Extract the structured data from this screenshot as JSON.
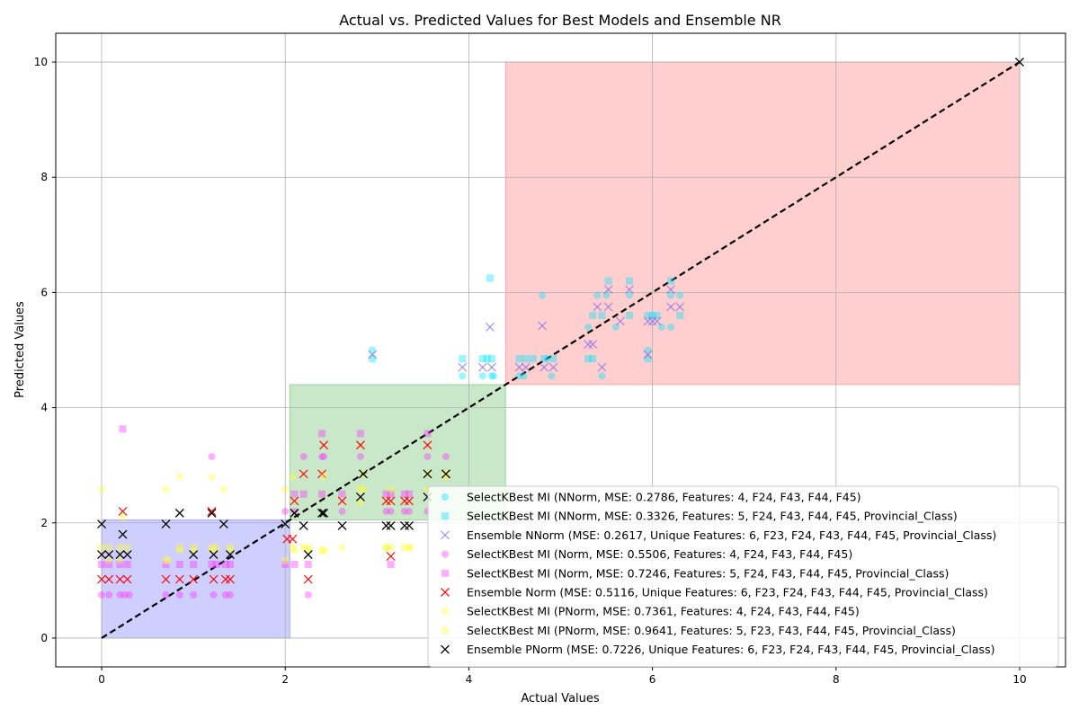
{
  "chart_data": {
    "type": "scatter",
    "title": "Actual vs. Predicted Values for Best Models and Ensemble NR",
    "xlabel": "Actual Values",
    "ylabel": "Predicted Values",
    "xlim": [
      -0.5,
      10.5
    ],
    "ylim": [
      -0.5,
      10.5
    ],
    "xticks": [
      0,
      2,
      4,
      6,
      8,
      10
    ],
    "yticks": [
      0,
      2,
      4,
      6,
      8,
      10
    ],
    "grid": true,
    "legend_position": "lower-right",
    "regions": [
      {
        "x": [
          0,
          2.05
        ],
        "y": [
          0,
          2.05
        ],
        "color": "#6a6aff"
      },
      {
        "x": [
          2.05,
          4.4
        ],
        "y": [
          2.05,
          4.4
        ],
        "color": "#5cb85c"
      },
      {
        "x": [
          4.4,
          10
        ],
        "y": [
          4.4,
          10
        ],
        "color": "#ff6b6b"
      }
    ],
    "diagonal": {
      "x": [
        0,
        10
      ],
      "y": [
        0,
        10
      ]
    },
    "series": [
      {
        "name": "SelectKBest MI (NNorm, MSE: 0.2786, Features: 4, F24, F43, F44, F45)",
        "marker": "circle",
        "color": "#00e5ff",
        "points": [
          [
            2.95,
            5.0
          ],
          [
            3.93,
            4.55
          ],
          [
            4.15,
            4.55
          ],
          [
            4.25,
            4.55
          ],
          [
            4.27,
            4.55
          ],
          [
            4.55,
            4.55
          ],
          [
            4.6,
            4.55
          ],
          [
            4.8,
            5.95
          ],
          [
            4.85,
            4.85
          ],
          [
            4.9,
            4.55
          ],
          [
            5.3,
            5.4
          ],
          [
            5.4,
            5.95
          ],
          [
            5.5,
            5.95
          ],
          [
            5.6,
            5.4
          ],
          [
            5.75,
            5.95
          ],
          [
            5.95,
            5.0
          ],
          [
            6.1,
            5.4
          ],
          [
            6.2,
            5.95
          ],
          [
            6.3,
            5.95
          ],
          [
            6.2,
            5.4
          ],
          [
            5.45,
            4.55
          ]
        ]
      },
      {
        "name": "SelectKBest MI (NNorm, MSE: 0.3326, Features: 5, F24, F43, F44, F45, Provincial_Class)",
        "marker": "square",
        "color": "#00e5ff",
        "points": [
          [
            2.95,
            4.85
          ],
          [
            3.93,
            4.85
          ],
          [
            4.15,
            4.85
          ],
          [
            4.2,
            4.85
          ],
          [
            4.25,
            4.85
          ],
          [
            4.23,
            6.25
          ],
          [
            4.55,
            4.85
          ],
          [
            4.62,
            4.85
          ],
          [
            4.7,
            4.85
          ],
          [
            4.82,
            4.85
          ],
          [
            4.92,
            4.85
          ],
          [
            5.3,
            4.85
          ],
          [
            5.35,
            4.85
          ],
          [
            5.35,
            5.6
          ],
          [
            5.45,
            5.6
          ],
          [
            5.52,
            6.2
          ],
          [
            5.75,
            6.2
          ],
          [
            5.75,
            5.6
          ],
          [
            5.95,
            5.6
          ],
          [
            6.0,
            5.6
          ],
          [
            6.05,
            5.6
          ],
          [
            6.2,
            6.2
          ],
          [
            6.3,
            5.6
          ],
          [
            5.95,
            4.85
          ]
        ]
      },
      {
        "name": "Ensemble NNorm (MSE: 0.2617, Unique Features: 6, F23, F24, F43, F44, F45, Provincial_Class)",
        "marker": "x",
        "color": "#7b68ee",
        "points": [
          [
            2.95,
            4.92
          ],
          [
            3.93,
            4.7
          ],
          [
            4.15,
            4.7
          ],
          [
            4.25,
            4.7
          ],
          [
            4.23,
            5.4
          ],
          [
            4.55,
            4.7
          ],
          [
            4.62,
            4.7
          ],
          [
            4.8,
            5.42
          ],
          [
            4.82,
            4.7
          ],
          [
            4.92,
            4.7
          ],
          [
            5.3,
            5.1
          ],
          [
            5.35,
            5.1
          ],
          [
            5.4,
            5.75
          ],
          [
            5.45,
            4.7
          ],
          [
            5.52,
            5.75
          ],
          [
            5.52,
            6.05
          ],
          [
            5.65,
            5.5
          ],
          [
            5.75,
            6.05
          ],
          [
            5.95,
            5.5
          ],
          [
            5.95,
            4.92
          ],
          [
            6.0,
            5.5
          ],
          [
            6.05,
            5.5
          ],
          [
            6.2,
            6.05
          ],
          [
            6.2,
            5.75
          ],
          [
            6.3,
            5.75
          ],
          [
            10,
            10
          ]
        ]
      },
      {
        "name": "SelectKBest MI (Norm, MSE: 0.5506, Features: 4, F24, F43, F44, F45)",
        "marker": "circle",
        "color": "#ff33ff",
        "points": [
          [
            0.0,
            0.75
          ],
          [
            0.08,
            0.75
          ],
          [
            0.2,
            0.75
          ],
          [
            0.25,
            0.75
          ],
          [
            0.3,
            0.75
          ],
          [
            0.7,
            0.75
          ],
          [
            0.85,
            0.75
          ],
          [
            1.0,
            0.75
          ],
          [
            1.2,
            3.15
          ],
          [
            1.22,
            0.75
          ],
          [
            1.35,
            0.75
          ],
          [
            1.4,
            0.75
          ],
          [
            2.0,
            2.2
          ],
          [
            2.1,
            2.2
          ],
          [
            2.2,
            3.15
          ],
          [
            2.25,
            0.75
          ],
          [
            2.4,
            3.15
          ],
          [
            2.42,
            3.15
          ],
          [
            2.62,
            2.2
          ],
          [
            2.82,
            3.15
          ],
          [
            3.1,
            2.2
          ],
          [
            3.15,
            2.2
          ],
          [
            3.3,
            2.2
          ],
          [
            3.35,
            2.2
          ],
          [
            3.55,
            3.15
          ],
          [
            3.55,
            2.2
          ],
          [
            3.75,
            3.15
          ]
        ]
      },
      {
        "name": "SelectKBest MI (Norm, MSE: 0.7246, Features: 5, F24, F43, F44, F45, Provincial_Class)",
        "marker": "square",
        "color": "#ff33ff",
        "points": [
          [
            0.0,
            1.28
          ],
          [
            0.08,
            1.28
          ],
          [
            0.2,
            1.28
          ],
          [
            0.23,
            3.63
          ],
          [
            0.28,
            1.28
          ],
          [
            0.7,
            1.28
          ],
          [
            0.85,
            1.28
          ],
          [
            1.0,
            1.28
          ],
          [
            1.2,
            1.28
          ],
          [
            1.25,
            1.28
          ],
          [
            1.35,
            1.28
          ],
          [
            1.4,
            1.28
          ],
          [
            2.0,
            1.28
          ],
          [
            2.1,
            1.28
          ],
          [
            2.1,
            2.5
          ],
          [
            2.2,
            2.5
          ],
          [
            2.25,
            1.28
          ],
          [
            2.4,
            2.5
          ],
          [
            2.4,
            3.55
          ],
          [
            2.62,
            2.5
          ],
          [
            2.82,
            3.55
          ],
          [
            3.1,
            2.5
          ],
          [
            3.15,
            1.28
          ],
          [
            3.15,
            2.5
          ],
          [
            3.3,
            2.5
          ],
          [
            3.35,
            2.5
          ],
          [
            3.55,
            3.55
          ]
        ]
      },
      {
        "name": "Ensemble Norm (MSE: 0.5116, Unique Features: 6, F23, F24, F43, F44, F45, Provincial_Class)",
        "marker": "x",
        "color": "#ff0000",
        "points": [
          [
            0.0,
            1.02
          ],
          [
            0.08,
            1.02
          ],
          [
            0.2,
            1.02
          ],
          [
            0.23,
            2.2
          ],
          [
            0.28,
            1.02
          ],
          [
            0.7,
            1.02
          ],
          [
            0.85,
            1.02
          ],
          [
            1.0,
            1.02
          ],
          [
            1.2,
            2.2
          ],
          [
            1.22,
            1.02
          ],
          [
            1.35,
            1.02
          ],
          [
            1.4,
            1.02
          ],
          [
            2.02,
            1.72
          ],
          [
            2.08,
            1.72
          ],
          [
            2.1,
            2.38
          ],
          [
            2.2,
            2.85
          ],
          [
            2.25,
            1.02
          ],
          [
            2.4,
            2.85
          ],
          [
            2.42,
            3.35
          ],
          [
            2.62,
            2.38
          ],
          [
            2.82,
            3.35
          ],
          [
            3.1,
            2.38
          ],
          [
            3.15,
            1.42
          ],
          [
            3.15,
            2.38
          ],
          [
            3.3,
            2.38
          ],
          [
            3.35,
            2.38
          ],
          [
            3.55,
            3.35
          ],
          [
            3.75,
            2.85
          ]
        ]
      },
      {
        "name": "SelectKBest MI (PNorm, MSE: 0.7361, Features: 4, F24, F43, F44, F45)",
        "marker": "circle",
        "color": "#ffff33",
        "points": [
          [
            0.0,
            2.58
          ],
          [
            0.08,
            1.35
          ],
          [
            0.2,
            1.35
          ],
          [
            0.23,
            2.1
          ],
          [
            0.7,
            2.58
          ],
          [
            0.72,
            1.35
          ],
          [
            0.85,
            2.8
          ],
          [
            0.85,
            1.52
          ],
          [
            1.0,
            1.52
          ],
          [
            1.2,
            2.8
          ],
          [
            1.2,
            1.52
          ],
          [
            1.33,
            2.58
          ],
          [
            1.4,
            1.52
          ],
          [
            2.0,
            2.58
          ],
          [
            2.08,
            2.8
          ],
          [
            2.1,
            1.52
          ],
          [
            2.25,
            1.52
          ],
          [
            2.42,
            2.8
          ],
          [
            2.62,
            1.57
          ],
          [
            2.82,
            2.35
          ],
          [
            2.85,
            2.58
          ],
          [
            3.1,
            1.57
          ],
          [
            3.15,
            2.58
          ],
          [
            3.35,
            1.57
          ],
          [
            3.55,
            2.58
          ],
          [
            3.75,
            2.8
          ]
        ]
      },
      {
        "name": "SelectKBest MI (PNorm, MSE: 0.9641, Features: 5, F23, F43, F44, F45, Provincial_Class)",
        "marker": "square",
        "color": "#ffff33",
        "points": [
          [
            0.0,
            1.57
          ],
          [
            0.08,
            1.57
          ],
          [
            0.2,
            1.57
          ],
          [
            0.28,
            1.57
          ],
          [
            0.7,
            1.35
          ],
          [
            0.85,
            1.57
          ],
          [
            1.0,
            1.57
          ],
          [
            1.2,
            1.57
          ],
          [
            1.25,
            1.57
          ],
          [
            1.4,
            1.57
          ],
          [
            2.0,
            1.35
          ],
          [
            2.08,
            1.57
          ],
          [
            2.2,
            1.57
          ],
          [
            2.25,
            1.57
          ],
          [
            2.4,
            1.52
          ],
          [
            2.42,
            1.52
          ],
          [
            2.82,
            2.58
          ],
          [
            2.85,
            2.85
          ],
          [
            3.1,
            1.57
          ],
          [
            3.15,
            1.57
          ],
          [
            3.3,
            1.57
          ],
          [
            3.35,
            1.57
          ],
          [
            3.55,
            2.85
          ],
          [
            3.75,
            2.85
          ]
        ]
      },
      {
        "name": "Ensemble PNorm (MSE: 0.7226, Unique Features: 6, F23, F24, F43, F44, F45, Provincial_Class)",
        "marker": "x",
        "color": "#000000",
        "points": [
          [
            0.0,
            1.98
          ],
          [
            0.0,
            1.45
          ],
          [
            0.08,
            1.45
          ],
          [
            0.2,
            1.45
          ],
          [
            0.23,
            1.8
          ],
          [
            0.28,
            1.45
          ],
          [
            0.7,
            1.98
          ],
          [
            0.85,
            2.17
          ],
          [
            1.0,
            1.45
          ],
          [
            1.2,
            2.17
          ],
          [
            1.22,
            1.45
          ],
          [
            1.33,
            1.98
          ],
          [
            1.4,
            1.45
          ],
          [
            2.0,
            1.98
          ],
          [
            2.1,
            2.17
          ],
          [
            2.2,
            1.95
          ],
          [
            2.25,
            1.45
          ],
          [
            2.4,
            2.17
          ],
          [
            2.42,
            2.17
          ],
          [
            2.62,
            1.95
          ],
          [
            2.82,
            2.45
          ],
          [
            2.85,
            2.85
          ],
          [
            3.1,
            1.95
          ],
          [
            3.15,
            1.95
          ],
          [
            3.3,
            1.95
          ],
          [
            3.35,
            1.95
          ],
          [
            3.55,
            2.85
          ],
          [
            3.55,
            2.45
          ],
          [
            3.75,
            2.85
          ],
          [
            10,
            10
          ]
        ]
      }
    ]
  }
}
